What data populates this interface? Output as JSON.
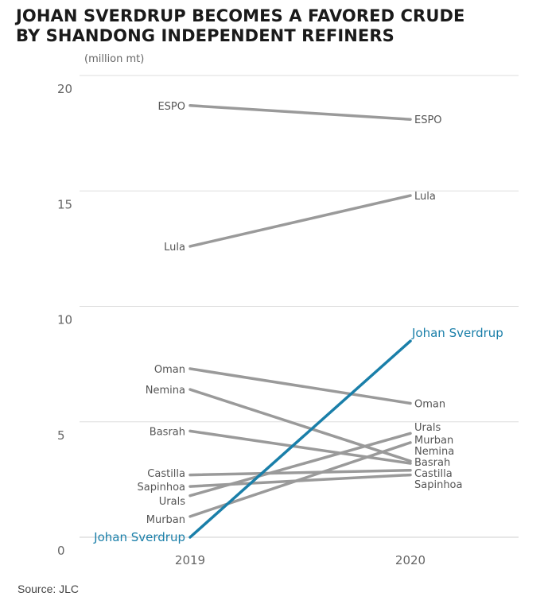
{
  "chart_data": {
    "type": "line",
    "title": [
      "JOHAN SVERDRUP BECOMES A FAVORED CRUDE",
      "BY SHANDONG INDEPENDENT REFINERS"
    ],
    "ylabel": "(million mt)",
    "ylim": [
      0,
      20
    ],
    "yticks": [
      "0",
      "5",
      "10",
      "15",
      "20"
    ],
    "categories": [
      "2019",
      "2020"
    ],
    "grid": true,
    "colors": {
      "default": "#9a9a9a",
      "highlight": "#1a7fa9"
    },
    "series": [
      {
        "name": "ESPO",
        "values": [
          18.7,
          18.1
        ]
      },
      {
        "name": "Lula",
        "values": [
          12.6,
          14.8
        ]
      },
      {
        "name": "Oman",
        "values": [
          7.3,
          5.8
        ]
      },
      {
        "name": "Nemina",
        "values": [
          6.4,
          3.3
        ]
      },
      {
        "name": "Basrah",
        "values": [
          4.6,
          3.2
        ]
      },
      {
        "name": "Castilla",
        "values": [
          2.7,
          2.9
        ]
      },
      {
        "name": "Sapinhoa",
        "values": [
          2.2,
          2.7
        ]
      },
      {
        "name": "Urals",
        "values": [
          1.8,
          4.5
        ]
      },
      {
        "name": "Murban",
        "values": [
          0.9,
          4.1
        ]
      },
      {
        "name": "Johan Sverdrup",
        "values": [
          0.0,
          8.5
        ],
        "highlight": true
      }
    ]
  },
  "source": "Source: JLC"
}
